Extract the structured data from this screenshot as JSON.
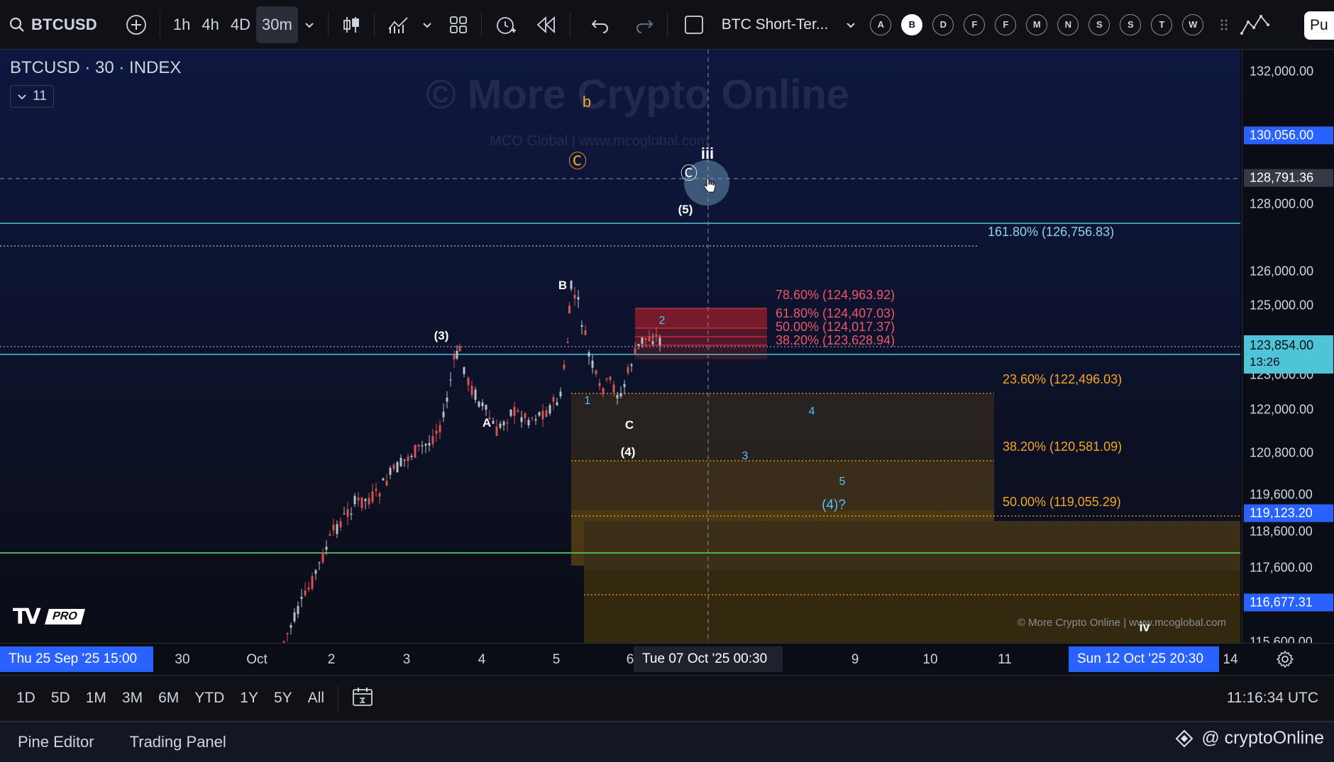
{
  "toolbar": {
    "symbol": "BTCUSD",
    "intervals": [
      "1h",
      "4h",
      "4D",
      "30m"
    ],
    "active_interval": "30m",
    "layout_title": "BTC Short-Ter...",
    "drawing_letters": [
      "A",
      "B",
      "D",
      "F",
      "F",
      "M",
      "N",
      "S",
      "S",
      "T",
      "W"
    ],
    "selected_letter": "B",
    "publish_label": "Pu"
  },
  "chart": {
    "header": "BTCUSD · 30 · INDEX",
    "indicator_count": "11",
    "watermark": "© More Crypto Online",
    "watermark_sub": "MCO Global  |  www.mcoglobal.com",
    "copyright": "© More Crypto Online  |  www.mcoglobal.com",
    "tv_pro": "PRO",
    "wave_labels": {
      "b_orange": "b",
      "c_orange": "Ⓒ",
      "iii": "iii",
      "c_white": "Ⓒ",
      "five_paren": "(5)",
      "B": "B",
      "three_paren": "(3)",
      "A": "A",
      "C": "C",
      "four_paren": "(4)",
      "one": "1",
      "two": "2",
      "three": "3",
      "four": "4",
      "five": "5",
      "four_q": "(4)?",
      "iv": "iv"
    },
    "fib_upper": {
      "f161": "161.80% (126,756.83)"
    },
    "fib_retrace": {
      "f786": "78.60% (124,963.92)",
      "f618": "61.80% (124,407.03)",
      "f500": "50.00% (124,017.37)",
      "f382": "38.20% (123,628.94)"
    },
    "fib_ext": {
      "f236": "23.60% (122,496.03)",
      "f382": "38.20% (120,581.09)",
      "f500": "50.00% (119,055.29)"
    }
  },
  "price_axis": {
    "ticks": [
      "132,000.00",
      "128,000.00",
      "126,000.00",
      "125,000.00",
      "123,000.00",
      "122,000.00",
      "120,800.00",
      "119,600.00",
      "118,600.00",
      "117,600.00",
      "115,600.00"
    ],
    "tags": {
      "t130": "130,056.00",
      "t128": "128,791.36",
      "current": "123,854.00",
      "countdown": "13:26",
      "t119": "119,123.20",
      "t116": "116,677.31"
    }
  },
  "time_axis": {
    "ticks": [
      "30",
      "Oct",
      "2",
      "3",
      "4",
      "5",
      "6",
      "9",
      "10",
      "11",
      "14"
    ],
    "start_tag": "Thu 25 Sep '25   15:00",
    "cursor_tag": "Tue 07 Oct '25   00:30",
    "end_tag": "Sun 12 Oct '25   20:30"
  },
  "range_bar": {
    "ranges": [
      "1D",
      "5D",
      "1M",
      "3M",
      "6M",
      "YTD",
      "1Y",
      "5Y",
      "All"
    ],
    "clock": "11:16:34 UTC"
  },
  "bottom_panel": {
    "tabs": [
      "Pine Editor",
      "Trading Panel"
    ],
    "handle": "@ cryptoOnline"
  },
  "colors": {
    "background": "#0b0d16",
    "accent": "#2962ff",
    "up": "#b8c0c8",
    "down": "#d9534f",
    "fib_red": "#f23645",
    "fib_orange": "#f5a623",
    "cyan_line": "#4fc3d7",
    "green_line": "#4caf50"
  }
}
